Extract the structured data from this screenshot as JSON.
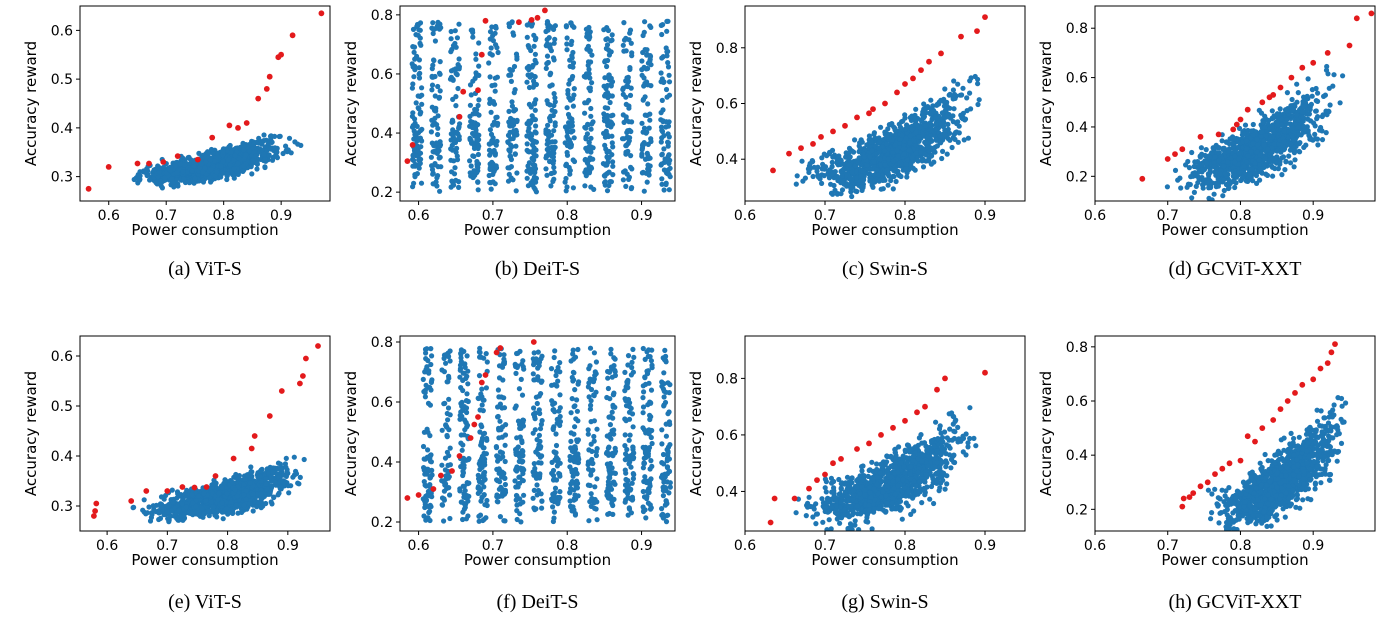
{
  "chart_data": [
    {
      "type": "scatter",
      "caption": "(a) ViT-S",
      "xlabel": "Power consumption",
      "ylabel": "Accuracy reward",
      "xlim": [
        0.55,
        0.985
      ],
      "ylim": [
        0.25,
        0.65
      ],
      "xticks": [
        "0.6",
        "0.7",
        "0.8",
        "0.9"
      ],
      "yticks": [
        "0.3",
        "0.4",
        "0.5",
        "0.6"
      ],
      "series": [
        {
          "color": "#1f77b4",
          "x_range": [
            0.58,
            0.96
          ],
          "y_base": 0.29,
          "y_slope": 0.22,
          "y_spread": 0.06
        },
        {
          "color": "#e31a1c",
          "points": [
            [
              0.565,
              0.275
            ],
            [
              0.6,
              0.32
            ],
            [
              0.65,
              0.327
            ],
            [
              0.67,
              0.327
            ],
            [
              0.695,
              0.33
            ],
            [
              0.72,
              0.342
            ],
            [
              0.755,
              0.335
            ],
            [
              0.78,
              0.38
            ],
            [
              0.81,
              0.405
            ],
            [
              0.825,
              0.4
            ],
            [
              0.84,
              0.41
            ],
            [
              0.86,
              0.46
            ],
            [
              0.875,
              0.48
            ],
            [
              0.88,
              0.505
            ],
            [
              0.895,
              0.545
            ],
            [
              0.9,
              0.55
            ],
            [
              0.92,
              0.59
            ],
            [
              0.97,
              0.635
            ]
          ]
        }
      ]
    },
    {
      "type": "scatter",
      "caption": "(b) DeiT-S",
      "xlabel": "Power consumption",
      "ylabel": "Accuracy reward",
      "xlim": [
        0.575,
        0.945
      ],
      "ylim": [
        0.17,
        0.83
      ],
      "xticks": [
        "0.6",
        "0.7",
        "0.8",
        "0.9"
      ],
      "yticks": [
        "0.2",
        "0.4",
        "0.6",
        "0.8"
      ],
      "series": [
        {
          "color": "#1f77b4",
          "x_range": [
            0.585,
            0.945
          ],
          "y_base": 0.2,
          "y_slope": 0.0,
          "y_spread": 0.58,
          "banded": true
        },
        {
          "color": "#e31a1c",
          "points": [
            [
              0.585,
              0.305
            ],
            [
              0.592,
              0.36
            ],
            [
              0.655,
              0.455
            ],
            [
              0.66,
              0.54
            ],
            [
              0.68,
              0.545
            ],
            [
              0.685,
              0.665
            ],
            [
              0.69,
              0.78
            ],
            [
              0.735,
              0.775
            ],
            [
              0.752,
              0.783
            ],
            [
              0.76,
              0.79
            ],
            [
              0.77,
              0.815
            ]
          ]
        }
      ]
    },
    {
      "type": "scatter",
      "caption": "(c) Swin-S",
      "xlabel": "Power consumption",
      "ylabel": "Accuracy reward",
      "xlim": [
        0.6,
        0.95
      ],
      "ylim": [
        0.25,
        0.95
      ],
      "xticks": [
        "0.6",
        "0.7",
        "0.8",
        "0.9"
      ],
      "yticks": [
        "0.4",
        "0.6",
        "0.8"
      ],
      "series": [
        {
          "color": "#1f77b4",
          "x_range": [
            0.63,
            0.92
          ],
          "y_base": 0.3,
          "y_slope": 1.1,
          "y_spread": 0.22
        },
        {
          "color": "#e31a1c",
          "points": [
            [
              0.635,
              0.36
            ],
            [
              0.655,
              0.42
            ],
            [
              0.67,
              0.44
            ],
            [
              0.685,
              0.455
            ],
            [
              0.695,
              0.48
            ],
            [
              0.71,
              0.5
            ],
            [
              0.725,
              0.52
            ],
            [
              0.74,
              0.55
            ],
            [
              0.755,
              0.565
            ],
            [
              0.76,
              0.58
            ],
            [
              0.775,
              0.6
            ],
            [
              0.79,
              0.64
            ],
            [
              0.8,
              0.67
            ],
            [
              0.81,
              0.69
            ],
            [
              0.82,
              0.72
            ],
            [
              0.83,
              0.75
            ],
            [
              0.845,
              0.78
            ],
            [
              0.87,
              0.84
            ],
            [
              0.89,
              0.86
            ],
            [
              0.9,
              0.91
            ]
          ]
        }
      ]
    },
    {
      "type": "scatter",
      "caption": "(d) GCViT-XXT",
      "xlabel": "Power consumption",
      "ylabel": "Accuracy reward",
      "xlim": [
        0.6,
        0.985
      ],
      "ylim": [
        0.1,
        0.89
      ],
      "xticks": [
        "0.6",
        "0.7",
        "0.8",
        "0.9"
      ],
      "yticks": [
        "0.2",
        "0.4",
        "0.6",
        "0.8"
      ],
      "series": [
        {
          "color": "#1f77b4",
          "x_range": [
            0.66,
            0.96
          ],
          "y_base": 0.15,
          "y_slope": 1.3,
          "y_spread": 0.25
        },
        {
          "color": "#e31a1c",
          "points": [
            [
              0.665,
              0.19
            ],
            [
              0.7,
              0.27
            ],
            [
              0.71,
              0.29
            ],
            [
              0.72,
              0.31
            ],
            [
              0.745,
              0.36
            ],
            [
              0.77,
              0.37
            ],
            [
              0.79,
              0.39
            ],
            [
              0.795,
              0.41
            ],
            [
              0.8,
              0.43
            ],
            [
              0.81,
              0.47
            ],
            [
              0.83,
              0.5
            ],
            [
              0.84,
              0.52
            ],
            [
              0.845,
              0.53
            ],
            [
              0.855,
              0.56
            ],
            [
              0.87,
              0.6
            ],
            [
              0.885,
              0.64
            ],
            [
              0.9,
              0.66
            ],
            [
              0.92,
              0.7
            ],
            [
              0.95,
              0.73
            ],
            [
              0.96,
              0.84
            ],
            [
              0.98,
              0.86
            ]
          ]
        }
      ]
    },
    {
      "type": "scatter",
      "caption": "(e) ViT-S",
      "xlabel": "Power consumption",
      "ylabel": "Accuracy reward",
      "xlim": [
        0.555,
        0.97
      ],
      "ylim": [
        0.25,
        0.64
      ],
      "xticks": [
        "0.6",
        "0.7",
        "0.8",
        "0.9"
      ],
      "yticks": [
        "0.3",
        "0.4",
        "0.5",
        "0.6"
      ],
      "series": [
        {
          "color": "#1f77b4",
          "x_range": [
            0.6,
            0.96
          ],
          "y_base": 0.28,
          "y_slope": 0.25,
          "y_spread": 0.07
        },
        {
          "color": "#e31a1c",
          "points": [
            [
              0.578,
              0.28
            ],
            [
              0.58,
              0.29
            ],
            [
              0.582,
              0.305
            ],
            [
              0.64,
              0.31
            ],
            [
              0.665,
              0.33
            ],
            [
              0.7,
              0.33
            ],
            [
              0.725,
              0.338
            ],
            [
              0.745,
              0.337
            ],
            [
              0.765,
              0.338
            ],
            [
              0.78,
              0.36
            ],
            [
              0.81,
              0.395
            ],
            [
              0.84,
              0.415
            ],
            [
              0.845,
              0.44
            ],
            [
              0.87,
              0.48
            ],
            [
              0.89,
              0.53
            ],
            [
              0.92,
              0.545
            ],
            [
              0.925,
              0.56
            ],
            [
              0.93,
              0.595
            ],
            [
              0.95,
              0.62
            ]
          ]
        }
      ]
    },
    {
      "type": "scatter",
      "caption": "(f) DeiT-S",
      "xlabel": "Power consumption",
      "ylabel": "Accuracy reward",
      "xlim": [
        0.575,
        0.945
      ],
      "ylim": [
        0.17,
        0.82
      ],
      "xticks": [
        "0.6",
        "0.7",
        "0.8",
        "0.9"
      ],
      "yticks": [
        "0.2",
        "0.4",
        "0.6",
        "0.8"
      ],
      "series": [
        {
          "color": "#1f77b4",
          "x_range": [
            0.6,
            0.945
          ],
          "y_base": 0.2,
          "y_slope": 0.0,
          "y_spread": 0.58,
          "banded": true
        },
        {
          "color": "#e31a1c",
          "points": [
            [
              0.585,
              0.28
            ],
            [
              0.6,
              0.29
            ],
            [
              0.62,
              0.31
            ],
            [
              0.63,
              0.355
            ],
            [
              0.645,
              0.37
            ],
            [
              0.655,
              0.42
            ],
            [
              0.67,
              0.48
            ],
            [
              0.675,
              0.525
            ],
            [
              0.68,
              0.55
            ],
            [
              0.685,
              0.665
            ],
            [
              0.69,
              0.69
            ],
            [
              0.705,
              0.765
            ],
            [
              0.71,
              0.78
            ],
            [
              0.755,
              0.8
            ]
          ]
        }
      ]
    },
    {
      "type": "scatter",
      "caption": "(g) Swin-S",
      "xlabel": "Power consumption",
      "ylabel": "Accuracy reward",
      "xlim": [
        0.6,
        0.95
      ],
      "ylim": [
        0.26,
        0.95
      ],
      "xticks": [
        "0.6",
        "0.7",
        "0.8",
        "0.9"
      ],
      "yticks": [
        "0.4",
        "0.6",
        "0.8"
      ],
      "series": [
        {
          "color": "#1f77b4",
          "x_range": [
            0.63,
            0.91
          ],
          "y_base": 0.3,
          "y_slope": 1.1,
          "y_spread": 0.22
        },
        {
          "color": "#e31a1c",
          "points": [
            [
              0.632,
              0.29
            ],
            [
              0.637,
              0.375
            ],
            [
              0.662,
              0.375
            ],
            [
              0.68,
              0.41
            ],
            [
              0.69,
              0.44
            ],
            [
              0.7,
              0.46
            ],
            [
              0.71,
              0.5
            ],
            [
              0.72,
              0.515
            ],
            [
              0.74,
              0.55
            ],
            [
              0.755,
              0.57
            ],
            [
              0.77,
              0.6
            ],
            [
              0.785,
              0.625
            ],
            [
              0.8,
              0.65
            ],
            [
              0.815,
              0.68
            ],
            [
              0.825,
              0.7
            ],
            [
              0.84,
              0.76
            ],
            [
              0.85,
              0.8
            ],
            [
              0.9,
              0.82
            ]
          ]
        }
      ]
    },
    {
      "type": "scatter",
      "caption": "(h) GCViT-XXT",
      "xlabel": "Power consumption",
      "ylabel": "Accuracy reward",
      "xlim": [
        0.6,
        0.985
      ],
      "ylim": [
        0.12,
        0.84
      ],
      "xticks": [
        "0.6",
        "0.7",
        "0.8",
        "0.9"
      ],
      "yticks": [
        "0.2",
        "0.4",
        "0.6",
        "0.8"
      ],
      "series": [
        {
          "color": "#1f77b4",
          "x_range": [
            0.72,
            0.975
          ],
          "y_base": 0.15,
          "y_slope": 1.6,
          "y_spread": 0.25
        },
        {
          "color": "#e31a1c",
          "points": [
            [
              0.72,
              0.21
            ],
            [
              0.722,
              0.24
            ],
            [
              0.73,
              0.245
            ],
            [
              0.735,
              0.26
            ],
            [
              0.745,
              0.285
            ],
            [
              0.755,
              0.3
            ],
            [
              0.765,
              0.33
            ],
            [
              0.775,
              0.35
            ],
            [
              0.785,
              0.37
            ],
            [
              0.8,
              0.38
            ],
            [
              0.81,
              0.47
            ],
            [
              0.82,
              0.45
            ],
            [
              0.83,
              0.5
            ],
            [
              0.845,
              0.53
            ],
            [
              0.855,
              0.57
            ],
            [
              0.865,
              0.6
            ],
            [
              0.875,
              0.63
            ],
            [
              0.885,
              0.66
            ],
            [
              0.9,
              0.68
            ],
            [
              0.91,
              0.72
            ],
            [
              0.92,
              0.74
            ],
            [
              0.925,
              0.78
            ],
            [
              0.93,
              0.81
            ]
          ]
        }
      ]
    }
  ]
}
